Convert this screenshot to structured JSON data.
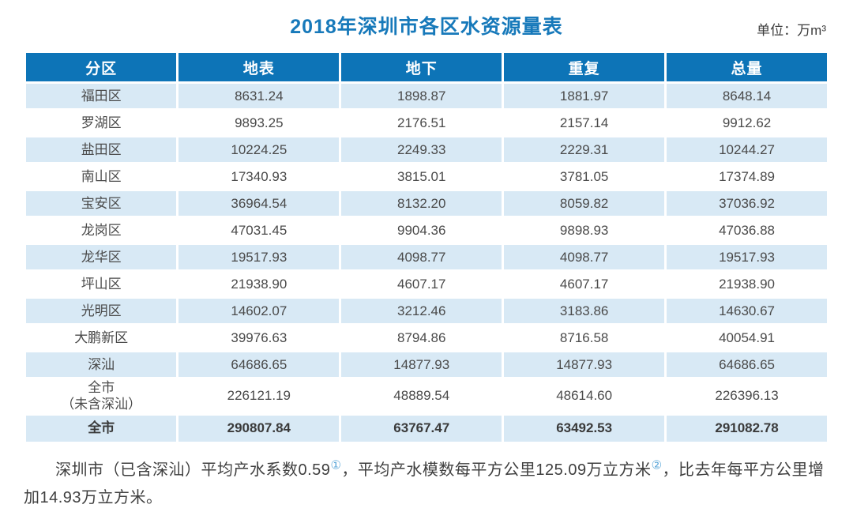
{
  "header": {
    "title": "2018年深圳市各区水资源量表",
    "unit_label": "单位：万m³"
  },
  "colors": {
    "header_blue": "#0d74b7",
    "row_light_blue": "#d8e9f5",
    "title_blue": "#1779ba",
    "body_text": "#4a4a4a",
    "footnote_marker_blue": "#58a6d8"
  },
  "table": {
    "columns": [
      "分区",
      "地表",
      "地下",
      "重复",
      "总量"
    ],
    "rows": [
      {
        "name": "福田区",
        "values": [
          "8631.24",
          "1898.87",
          "1881.97",
          "8648.14"
        ],
        "bold": false
      },
      {
        "name": "罗湖区",
        "values": [
          "9893.25",
          "2176.51",
          "2157.14",
          "9912.62"
        ],
        "bold": false
      },
      {
        "name": "盐田区",
        "values": [
          "10224.25",
          "2249.33",
          "2229.31",
          "10244.27"
        ],
        "bold": false
      },
      {
        "name": "南山区",
        "values": [
          "17340.93",
          "3815.01",
          "3781.05",
          "17374.89"
        ],
        "bold": false
      },
      {
        "name": "宝安区",
        "values": [
          "36964.54",
          "8132.20",
          "8059.82",
          "37036.92"
        ],
        "bold": false
      },
      {
        "name": "龙岗区",
        "values": [
          "47031.45",
          "9904.36",
          "9898.93",
          "47036.88"
        ],
        "bold": false
      },
      {
        "name": "龙华区",
        "values": [
          "19517.93",
          "4098.77",
          "4098.77",
          "19517.93"
        ],
        "bold": false
      },
      {
        "name": "坪山区",
        "values": [
          "21938.90",
          "4607.17",
          "4607.17",
          "21938.90"
        ],
        "bold": false
      },
      {
        "name": "光明区",
        "values": [
          "14602.07",
          "3212.46",
          "3183.86",
          "14630.67"
        ],
        "bold": false
      },
      {
        "name": "大鹏新区",
        "values": [
          "39976.63",
          "8794.86",
          "8716.58",
          "40054.91"
        ],
        "bold": false
      },
      {
        "name": "深汕",
        "values": [
          "64686.65",
          "14877.93",
          "14877.93",
          "64686.65"
        ],
        "bold": false
      },
      {
        "name": "全市\n（未含深汕）",
        "values": [
          "226121.19",
          "48889.54",
          "48614.60",
          "226396.13"
        ],
        "bold": false
      },
      {
        "name": "全市",
        "values": [
          "290807.84",
          "63767.47",
          "63492.53",
          "291082.78"
        ],
        "bold": true
      }
    ]
  },
  "footnote": {
    "part1": "深圳市（已含深汕）平均产水系数0.59",
    "marker1": "①",
    "part2": "，平均产水模数每平方公里125.09万立方米",
    "marker2": "②",
    "part3": "，比去年每平方公里增加14.93万立方米。"
  }
}
